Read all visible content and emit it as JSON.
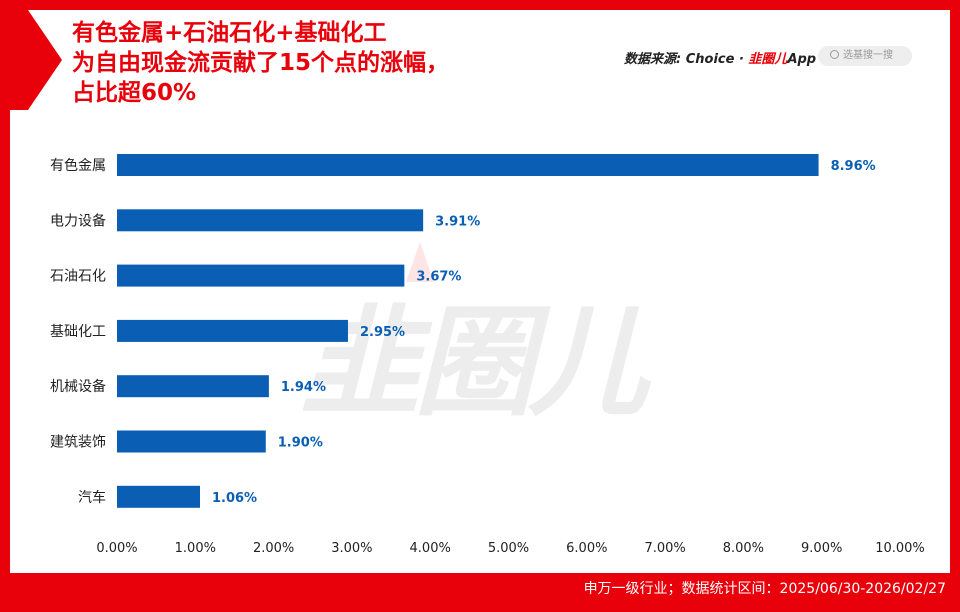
{
  "title_lines": [
    "有色金属+石油石化+基础化工",
    "为自由现金流贡献了15个点的涨幅，",
    "占比超60%"
  ],
  "source": {
    "prefix": "数据来源: Choice · ",
    "brand": "韭圈儿",
    "suffix": "App"
  },
  "search": {
    "placeholder": "选基搜一搜"
  },
  "watermark": "韭圈儿",
  "footer": "申万一级行业；数据统计区间：2025/06/30-2026/02/27",
  "colors": {
    "accent": "#e8000b",
    "bar": "#0a5fb4",
    "label": "#0a5fb4"
  },
  "chart_data": {
    "type": "bar",
    "orientation": "horizontal",
    "categories": [
      "有色金属",
      "电力设备",
      "石油石化",
      "基础化工",
      "机械设备",
      "建筑装饰",
      "汽车"
    ],
    "values": [
      8.96,
      3.91,
      3.67,
      2.95,
      1.94,
      1.9,
      1.06
    ],
    "value_labels": [
      "8.96%",
      "3.91%",
      "3.67%",
      "2.95%",
      "1.94%",
      "1.90%",
      "1.06%"
    ],
    "x_ticks": [
      0,
      1,
      2,
      3,
      4,
      5,
      6,
      7,
      8,
      9,
      10
    ],
    "x_tick_labels": [
      "0.00%",
      "1.00%",
      "2.00%",
      "3.00%",
      "4.00%",
      "5.00%",
      "6.00%",
      "7.00%",
      "8.00%",
      "9.00%",
      "10.00%"
    ],
    "xlim": [
      0,
      10
    ],
    "title": "有色金属+石油石化+基础化工为自由现金流贡献了15个点的涨幅，占比超60%",
    "xlabel": "",
    "ylabel": "",
    "grid": false
  }
}
